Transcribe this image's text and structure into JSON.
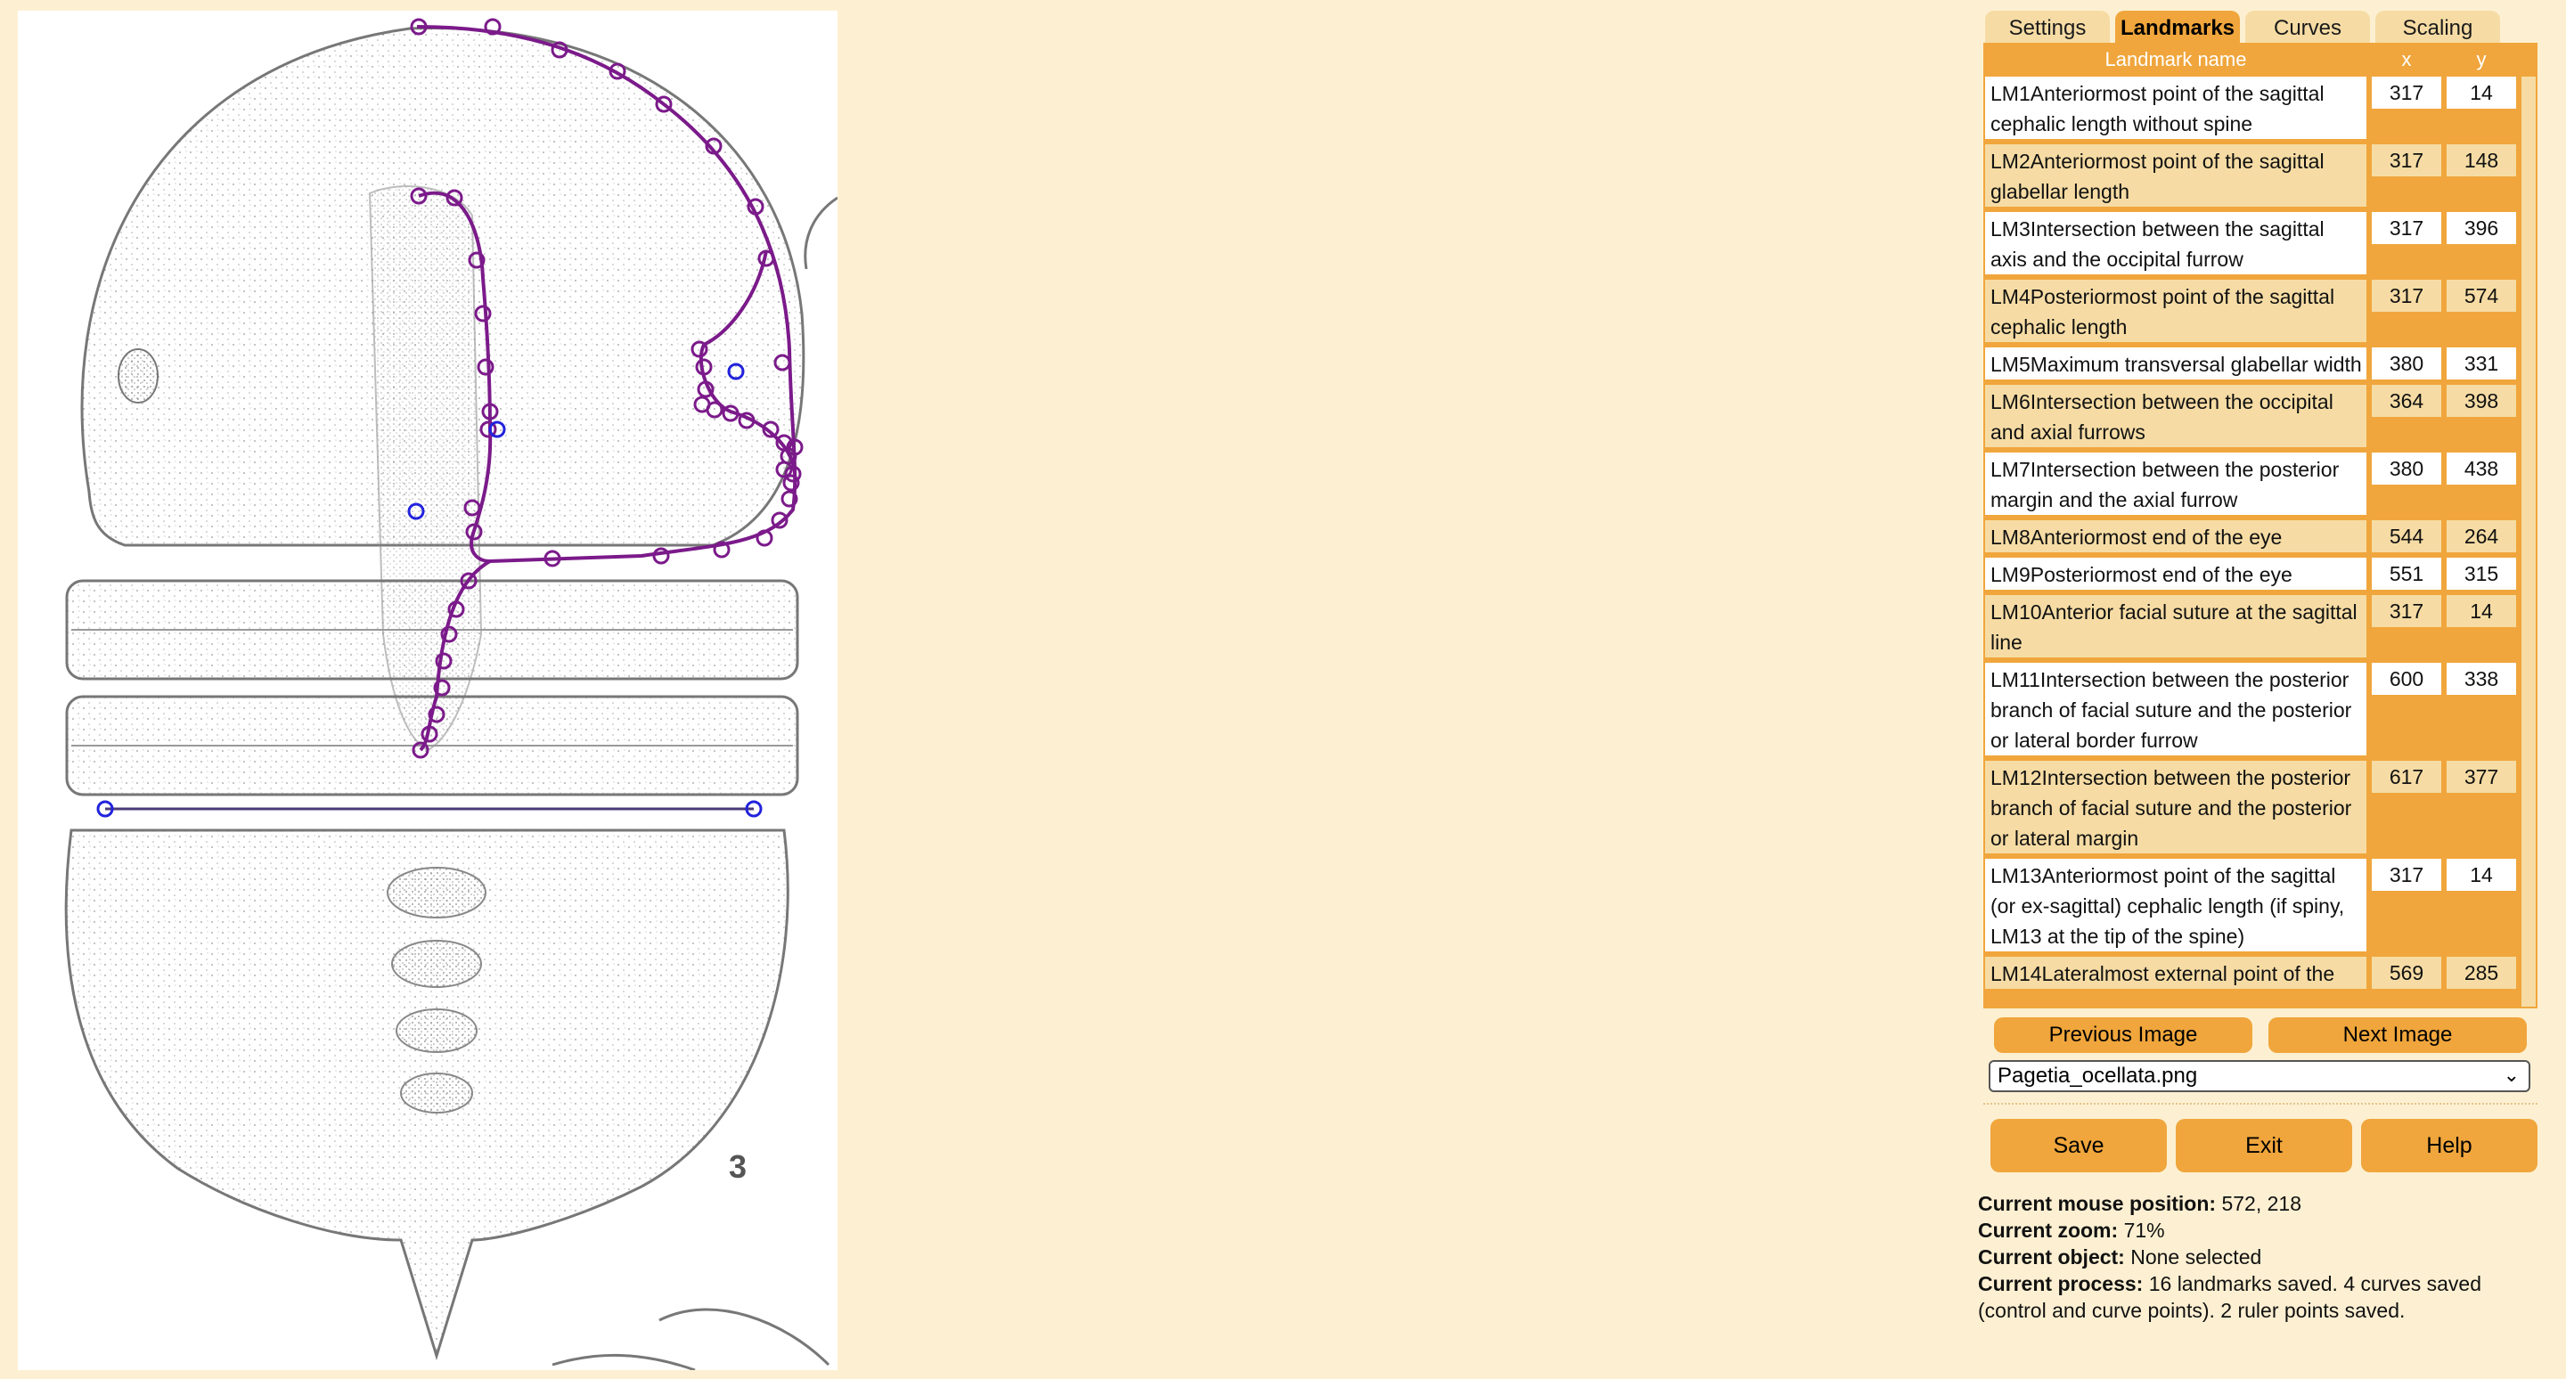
{
  "tabs": [
    {
      "label": "Settings"
    },
    {
      "label": "Landmarks"
    },
    {
      "label": "Curves"
    },
    {
      "label": "Scaling"
    }
  ],
  "active_tab": "Landmarks",
  "table": {
    "headers": {
      "name": "Landmark name",
      "x": "x",
      "y": "y"
    },
    "rows": [
      {
        "name": "LM1Anteriormost point of the sagittal cephalic length without spine",
        "x": "317",
        "y": "14"
      },
      {
        "name": "LM2Anteriormost point of the sagittal glabellar length",
        "x": "317",
        "y": "148"
      },
      {
        "name": "LM3Intersection between the sagittal axis and the occipital furrow",
        "x": "317",
        "y": "396"
      },
      {
        "name": "LM4Posteriormost point of the sagittal cephalic length",
        "x": "317",
        "y": "574"
      },
      {
        "name": "LM5Maximum transversal glabellar width",
        "x": "380",
        "y": "331"
      },
      {
        "name": "LM6Intersection between the occipital and axial furrows",
        "x": "364",
        "y": "398"
      },
      {
        "name": "LM7Intersection between the posterior margin and the axial furrow",
        "x": "380",
        "y": "438"
      },
      {
        "name": "LM8Anteriormost end of the eye",
        "x": "544",
        "y": "264"
      },
      {
        "name": "LM9Posteriormost end of the eye",
        "x": "551",
        "y": "315"
      },
      {
        "name": "LM10Anterior facial suture at the sagittal line",
        "x": "317",
        "y": "14"
      },
      {
        "name": "LM11Intersection between the posterior branch of facial suture and the posterior or lateral border furrow",
        "x": "600",
        "y": "338"
      },
      {
        "name": "LM12Intersection between the posterior branch of facial suture and the posterior or lateral margin",
        "x": "617",
        "y": "377"
      },
      {
        "name": "LM13Anteriormost point of the sagittal (or ex-sagittal) cephalic length (if spiny, LM13 at the tip of the spine)",
        "x": "317",
        "y": "14"
      },
      {
        "name": "LM14Lateralmost external point of the",
        "x": "569",
        "y": "285"
      }
    ]
  },
  "buttons": {
    "previous": "Previous Image",
    "next": "Next Image",
    "save": "Save",
    "exit": "Exit",
    "help": "Help"
  },
  "image_select": {
    "value": "Pagetia_ocellata.png"
  },
  "status": {
    "mouse_label": "Current mouse position:",
    "mouse_value": "572, 218",
    "zoom_label": "Current zoom:",
    "zoom_value": "71%",
    "object_label": "Current object:",
    "object_value": "None selected",
    "process_label": "Current process:",
    "process_value": "16 landmarks saved. 4 curves saved (control and curve points). 2 ruler points saved."
  },
  "specimen_label": "3",
  "colors": {
    "background": "#fdf0d2",
    "accent": "#f0a63c",
    "row_alt": "#f6dca4",
    "curve": "#7b1a8a",
    "landmark_point": "#2222dd"
  }
}
